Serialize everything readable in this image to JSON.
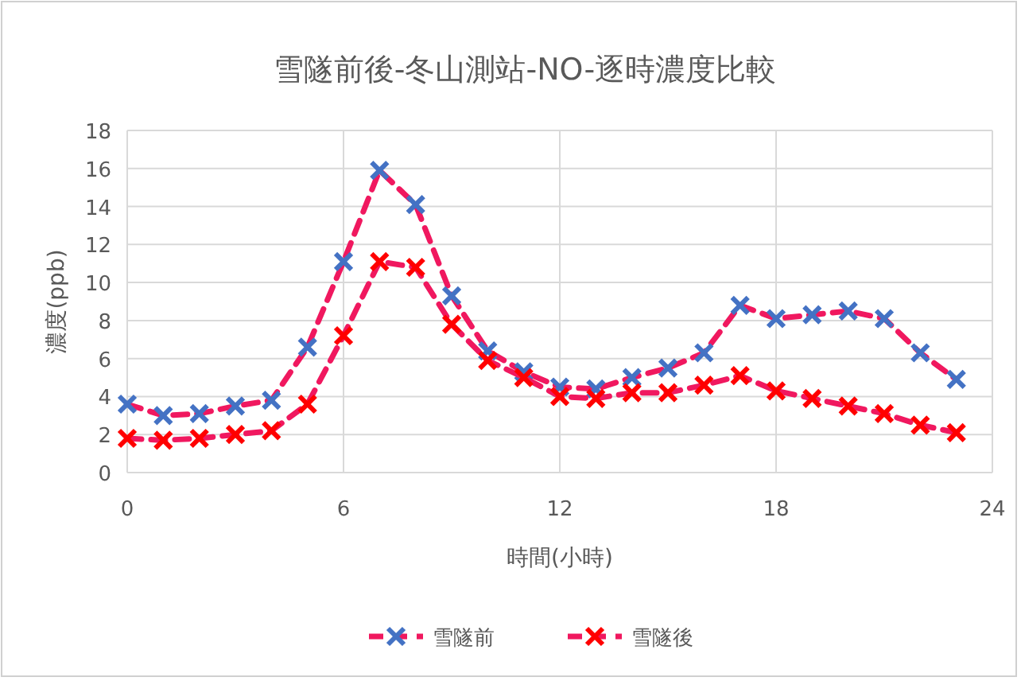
{
  "chart_data": {
    "type": "line",
    "title": "雪隧前後-冬山測站-NO-逐時濃度比較",
    "xlabel": "時間(小時)",
    "ylabel": "濃度(ppb)",
    "x": [
      0,
      1,
      2,
      3,
      4,
      5,
      6,
      7,
      8,
      9,
      10,
      11,
      12,
      13,
      14,
      15,
      16,
      17,
      18,
      19,
      20,
      21,
      22,
      23
    ],
    "xlim": [
      0,
      24
    ],
    "xticks": [
      0,
      6,
      12,
      18,
      24
    ],
    "ylim": [
      0,
      18
    ],
    "yticks": [
      0,
      2,
      4,
      6,
      8,
      10,
      12,
      14,
      16,
      18
    ],
    "grid": true,
    "legend": "bottom",
    "marker": "cross",
    "line_style": "dashed",
    "series": [
      {
        "name": "雪隧前",
        "color": "#f0185f",
        "colors": [
          "#4472c4",
          "#4472c4",
          "#4472c4",
          "#4472c4",
          "#4472c4",
          "#4472c4",
          "#4472c4",
          "#4472c4",
          "#4472c4",
          "#4472c4",
          "#4472c4",
          "#4472c4",
          "#4472c4",
          "#4472c4",
          "#4472c4",
          "#4472c4",
          "#4472c4",
          "#4472c4",
          "#4472c4",
          "#4472c4",
          "#4472c4",
          "#4472c4",
          "#4472c4",
          "#4472c4"
        ],
        "values": [
          3.6,
          3.0,
          3.1,
          3.5,
          3.8,
          6.6,
          11.1,
          15.9,
          14.1,
          9.3,
          6.4,
          5.3,
          4.5,
          4.4,
          5.0,
          5.5,
          6.3,
          8.8,
          8.1,
          8.3,
          8.5,
          8.1,
          6.3,
          4.9
        ]
      },
      {
        "name": "雪隧後",
        "color": "#f0185f",
        "colors": [
          "#ff0000",
          "#ff0000",
          "#ff0000",
          "#ff0000",
          "#ff0000",
          "#ff0000",
          "#ff0000",
          "#ff0000",
          "#ff0000",
          "#ff0000",
          "#ff0000",
          "#ff0000",
          "#ff0000",
          "#ff0000",
          "#ff0000",
          "#ff0000",
          "#ff0000",
          "#ff0000",
          "#ff0000",
          "#ff0000",
          "#ff0000",
          "#ff0000",
          "#ff0000",
          "#ff0000"
        ],
        "values": [
          1.8,
          1.7,
          1.8,
          2.0,
          2.2,
          3.6,
          7.2,
          11.1,
          10.8,
          7.8,
          5.9,
          5.0,
          4.0,
          3.9,
          4.2,
          4.2,
          4.6,
          5.1,
          4.3,
          3.9,
          3.5,
          3.1,
          2.5,
          2.1
        ]
      }
    ]
  }
}
